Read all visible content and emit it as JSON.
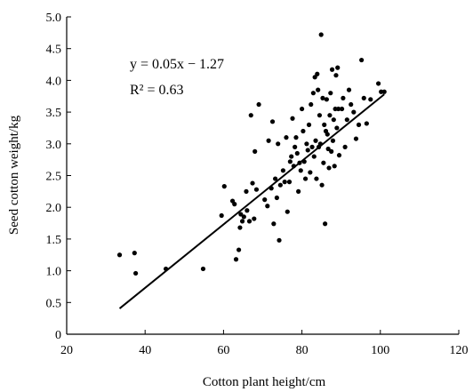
{
  "chart_data": {
    "type": "scatter",
    "title": "",
    "xlabel": "Cotton plant height/cm",
    "ylabel": "Seed cotton weight/kg",
    "xlim": [
      20,
      120
    ],
    "ylim": [
      0,
      5.0
    ],
    "x_ticks": [
      20,
      40,
      60,
      80,
      100,
      120
    ],
    "y_ticks": [
      0,
      0.5,
      1.0,
      1.5,
      2.0,
      2.5,
      3.0,
      3.5,
      4.0,
      4.5,
      5.0
    ],
    "x_tick_labels": [
      "20",
      "40",
      "60",
      "80",
      "100",
      "120"
    ],
    "y_tick_labels": [
      "0",
      "0.5",
      "1.0",
      "1.5",
      "2.0",
      "2.5",
      "3.0",
      "3.5",
      "4.0",
      "4.5",
      "5.0"
    ],
    "grid": false,
    "annotations": {
      "equation": "y = 0.05x − 1.27",
      "r_squared": "R² = 0.63"
    },
    "trendline": {
      "slope": 0.05,
      "intercept": -1.27,
      "x_range": [
        33.5,
        101
      ]
    },
    "points": [
      [
        33.5,
        1.25
      ],
      [
        37.3,
        1.28
      ],
      [
        37.6,
        0.96
      ],
      [
        45.3,
        1.03
      ],
      [
        54.8,
        1.03
      ],
      [
        59.5,
        1.87
      ],
      [
        60.2,
        2.33
      ],
      [
        62.3,
        2.1
      ],
      [
        62.8,
        2.05
      ],
      [
        63.2,
        1.18
      ],
      [
        63.9,
        1.33
      ],
      [
        64.2,
        1.68
      ],
      [
        64.4,
        1.89
      ],
      [
        64.8,
        1.78
      ],
      [
        65.2,
        1.85
      ],
      [
        65.8,
        2.25
      ],
      [
        66.0,
        1.95
      ],
      [
        66.6,
        1.78
      ],
      [
        67.0,
        3.45
      ],
      [
        67.4,
        2.38
      ],
      [
        67.8,
        1.82
      ],
      [
        68.0,
        2.88
      ],
      [
        68.4,
        2.28
      ],
      [
        69.0,
        3.62
      ],
      [
        70.5,
        2.12
      ],
      [
        71.2,
        2.02
      ],
      [
        71.5,
        3.05
      ],
      [
        72.2,
        2.3
      ],
      [
        72.5,
        3.35
      ],
      [
        72.8,
        1.74
      ],
      [
        73.2,
        2.45
      ],
      [
        73.6,
        2.15
      ],
      [
        73.9,
        3.0
      ],
      [
        74.2,
        1.48
      ],
      [
        74.5,
        2.35
      ],
      [
        75.2,
        2.58
      ],
      [
        75.6,
        2.4
      ],
      [
        76.0,
        3.1
      ],
      [
        76.3,
        1.93
      ],
      [
        76.8,
        2.4
      ],
      [
        77.0,
        2.72
      ],
      [
        77.3,
        2.8
      ],
      [
        77.6,
        3.4
      ],
      [
        77.9,
        2.65
      ],
      [
        78.2,
        2.95
      ],
      [
        78.5,
        3.1
      ],
      [
        78.8,
        2.85
      ],
      [
        79.1,
        2.25
      ],
      [
        79.4,
        2.7
      ],
      [
        79.7,
        2.58
      ],
      [
        80.0,
        3.55
      ],
      [
        80.3,
        3.2
      ],
      [
        80.6,
        2.72
      ],
      [
        80.9,
        2.45
      ],
      [
        81.2,
        3.0
      ],
      [
        81.5,
        2.9
      ],
      [
        81.8,
        3.3
      ],
      [
        82.1,
        2.55
      ],
      [
        82.3,
        3.62
      ],
      [
        82.6,
        2.95
      ],
      [
        82.9,
        3.8
      ],
      [
        83.1,
        2.8
      ],
      [
        83.3,
        4.05
      ],
      [
        83.5,
        3.05
      ],
      [
        83.7,
        2.45
      ],
      [
        83.9,
        4.1
      ],
      [
        84.1,
        3.85
      ],
      [
        84.3,
        2.95
      ],
      [
        84.5,
        3.45
      ],
      [
        84.7,
        3.0
      ],
      [
        84.9,
        4.72
      ],
      [
        85.1,
        2.35
      ],
      [
        85.3,
        3.72
      ],
      [
        85.5,
        2.7
      ],
      [
        85.7,
        3.3
      ],
      [
        85.9,
        1.74
      ],
      [
        86.1,
        3.2
      ],
      [
        86.3,
        3.7
      ],
      [
        86.5,
        3.15
      ],
      [
        86.7,
        2.92
      ],
      [
        86.9,
        2.62
      ],
      [
        87.1,
        3.45
      ],
      [
        87.3,
        3.8
      ],
      [
        87.5,
        2.88
      ],
      [
        87.7,
        4.17
      ],
      [
        87.9,
        3.05
      ],
      [
        88.1,
        3.38
      ],
      [
        88.3,
        2.65
      ],
      [
        88.5,
        3.55
      ],
      [
        88.7,
        4.08
      ],
      [
        88.9,
        3.25
      ],
      [
        89.1,
        4.2
      ],
      [
        89.3,
        3.55
      ],
      [
        89.5,
        2.82
      ],
      [
        90.2,
        3.55
      ],
      [
        90.5,
        3.72
      ],
      [
        91.0,
        2.95
      ],
      [
        91.5,
        3.38
      ],
      [
        92.0,
        3.85
      ],
      [
        92.5,
        3.62
      ],
      [
        93.2,
        3.5
      ],
      [
        93.8,
        3.08
      ],
      [
        94.5,
        3.3
      ],
      [
        95.2,
        4.32
      ],
      [
        95.8,
        3.72
      ],
      [
        96.5,
        3.32
      ],
      [
        97.5,
        3.7
      ],
      [
        99.5,
        3.95
      ],
      [
        100.2,
        3.82
      ],
      [
        101.0,
        3.82
      ]
    ]
  }
}
